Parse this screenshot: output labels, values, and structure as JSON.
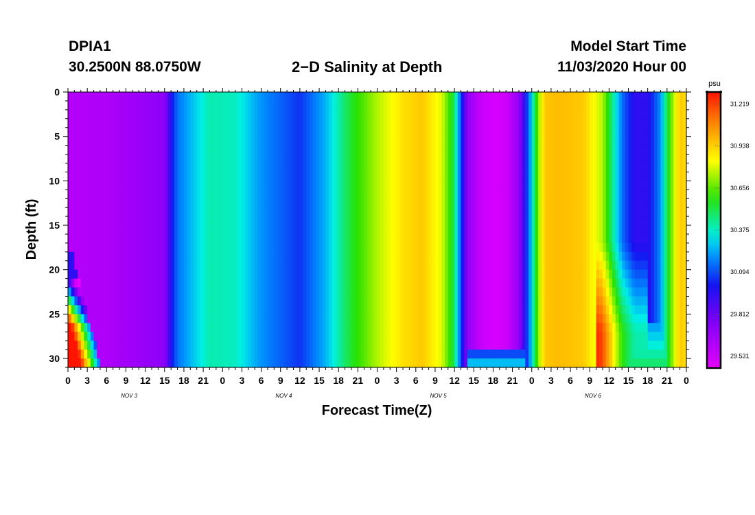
{
  "header": {
    "station": "DPIA1",
    "coords": "30.2500N 88.0750W",
    "title": "2−D Salinity at Depth",
    "start_label": "Model Start Time",
    "start_value": "11/03/2020 Hour 00"
  },
  "chart_data": {
    "type": "heatmap",
    "title": "2−D Salinity at Depth",
    "xlabel": "Forecast Time(Z)",
    "ylabel": "Depth (ft)",
    "ylim": [
      0,
      31
    ],
    "y_ticks": [
      "0",
      "5",
      "10",
      "15",
      "20",
      "25",
      "30"
    ],
    "x_range_hours": [
      0,
      96
    ],
    "x_tick_labels": [
      "0",
      "3",
      "6",
      "9",
      "12",
      "15",
      "18",
      "21",
      "0",
      "3",
      "6",
      "9",
      "12",
      "15",
      "18",
      "21",
      "0",
      "3",
      "6",
      "9",
      "12",
      "15",
      "18",
      "21",
      "0",
      "3",
      "6",
      "9",
      "12",
      "15",
      "18",
      "21",
      "0"
    ],
    "day_labels": [
      "NOV 3",
      "NOV 4",
      "NOV 5",
      "NOV 6"
    ],
    "colorbar": {
      "unit": "psu",
      "min": 29.45,
      "max": 31.3,
      "tick_labels": [
        "31.219",
        "30.938",
        "30.656",
        "30.375",
        "30.094",
        "29.812",
        "29.531"
      ],
      "tick_values": [
        31.219,
        30.938,
        30.656,
        30.375,
        30.094,
        29.812,
        29.531
      ]
    },
    "surface_salinity_profile": {
      "hours": [
        0,
        6,
        15,
        16,
        17,
        20,
        22,
        26,
        30,
        34,
        36,
        40,
        44,
        48,
        52,
        55,
        58,
        60,
        61,
        62,
        64,
        66,
        68,
        70,
        71,
        72,
        73,
        74,
        76,
        80,
        83,
        84,
        86,
        88,
        90,
        92,
        93,
        94,
        95,
        96
      ],
      "psu": [
        29.6,
        29.62,
        29.72,
        29.98,
        30.15,
        30.3,
        30.4,
        30.38,
        30.2,
        30.1,
        30.05,
        30.25,
        30.55,
        30.75,
        30.9,
        30.95,
        30.8,
        30.5,
        30.08,
        29.72,
        29.55,
        29.5,
        29.52,
        29.7,
        29.98,
        30.3,
        30.7,
        30.95,
        30.98,
        30.95,
        30.75,
        30.55,
        30.15,
        29.95,
        29.95,
        30.2,
        30.5,
        30.75,
        30.95,
        30.9
      ]
    },
    "bottom_features": {
      "bottom_layer_top_ft": 17.5,
      "bottom_layer_hours": [
        0,
        5.5
      ],
      "sag_dip_top_ft": 29,
      "sag_dip_hours": [
        62,
        71
      ],
      "late_dip_top_ft": 17,
      "late_dip_hours": [
        84,
        88
      ]
    }
  }
}
